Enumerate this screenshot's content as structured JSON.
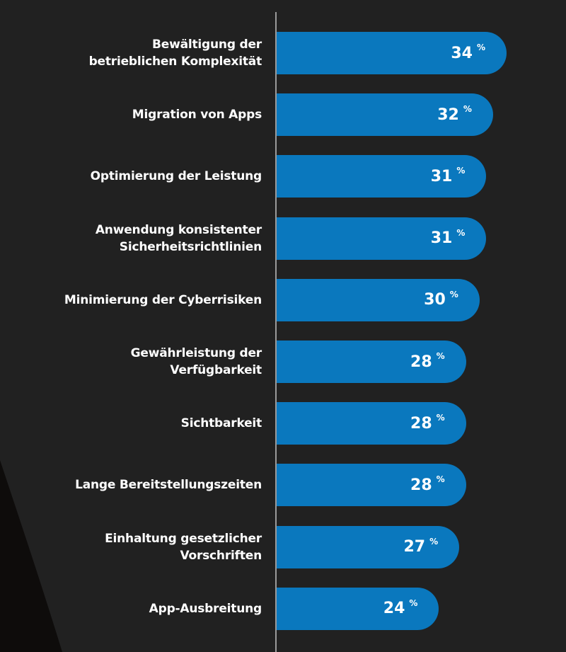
{
  "colors": {
    "background": "#212121",
    "bar": "#0a78be",
    "text": "#ffffff",
    "axis": "#9a9a9a",
    "curve": "#0e0c0b"
  },
  "chart_data": {
    "type": "bar",
    "orientation": "horizontal",
    "unit": "%",
    "categories": [
      [
        "Bewältigung der",
        "betrieblichen Komplexität"
      ],
      [
        "Migration von Apps"
      ],
      [
        "Optimierung der Leistung"
      ],
      [
        "Anwendung konsistenter",
        "Sicherheitsrichtlinien"
      ],
      [
        "Minimierung der Cyberrisiken"
      ],
      [
        "Gewährleistung der",
        "Verfügbarkeit"
      ],
      [
        "Sichtbarkeit"
      ],
      [
        "Lange Bereitstellungszeiten"
      ],
      [
        "Einhaltung gesetzlicher",
        "Vorschriften"
      ],
      [
        "App-Ausbreitung"
      ]
    ],
    "values": [
      34,
      32,
      31,
      31,
      30,
      28,
      28,
      28,
      27,
      24
    ],
    "percent_symbol": "%",
    "xlim": [
      0,
      40
    ],
    "grid": false,
    "legend": "none",
    "title": "",
    "xlabel": "",
    "ylabel": ""
  }
}
